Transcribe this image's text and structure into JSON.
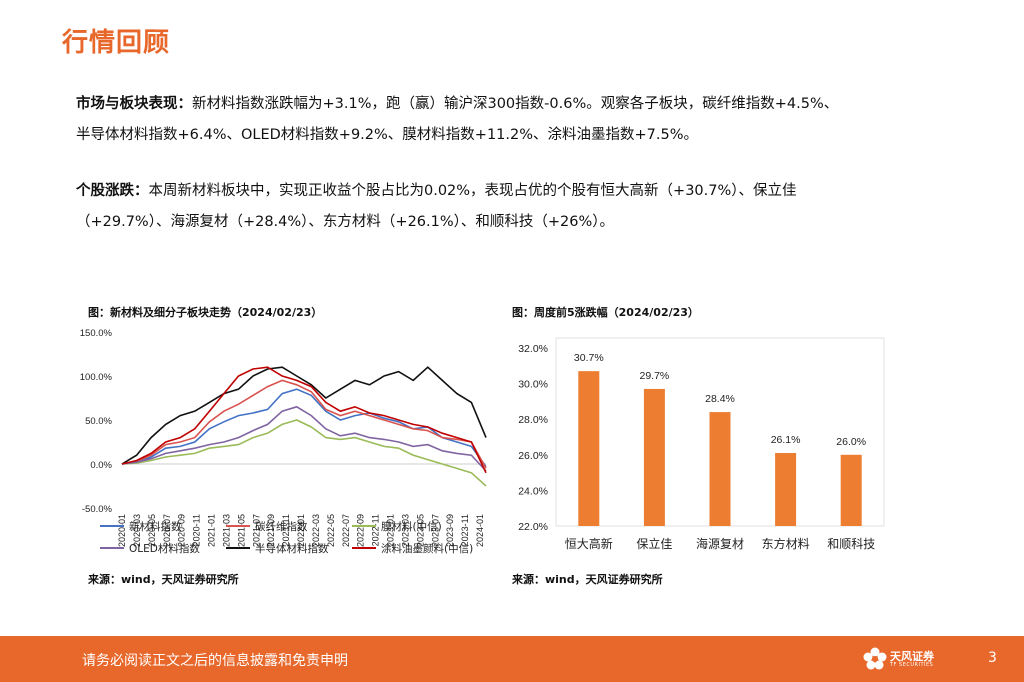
{
  "page_title": "行情回顾",
  "market": {
    "label": "市场与板块表现：",
    "text_l1": "新材料指数涨跌幅为+3.1%，跑（赢）输沪深300指数-0.6%。观察各子板块，碳纤维指数+4.5%、",
    "text_l2": "半导体材料指数+6.4%、OLED材料指数+9.2%、膜材料指数+11.2%、涂料油墨指数+7.5%。"
  },
  "stocks": {
    "label": "个股涨跌：",
    "text_l1": "本周新材料板块中，实现正收益个股占比为0.02%，表现占优的个股有恒大高新（+30.7%）、保立佳",
    "text_l2": "（+29.7%）、海源复材（+28.4%）、东方材料（+26.1%）、和顺科技（+26%）。"
  },
  "chart_data": [
    {
      "type": "line",
      "title": "图：新材料及细分子板块走势（2024/02/23）",
      "source": "来源：wind，天风证券研究所",
      "yticks": [
        "150.0%",
        "100.0%",
        "50.0%",
        "0.0%",
        "-50.0%"
      ],
      "ylim": [
        -50,
        150
      ],
      "xticks": [
        "2020-01",
        "2020-03",
        "2020-05",
        "2020-07",
        "2020-09",
        "2020-11",
        "2021-01",
        "2021-03",
        "2021-05",
        "2021-07",
        "2021-09",
        "2021-11",
        "2022-01",
        "2022-03",
        "2022-05",
        "2022-07",
        "2022-09",
        "2022-11",
        "2023-01",
        "2023-03",
        "2023-05",
        "2023-07",
        "2023-09",
        "2023-11",
        "2024-01"
      ],
      "legend_placement": "bottom",
      "series": [
        {
          "name": "新材料指数",
          "color": "#4472c4",
          "values": [
            0,
            2,
            8,
            18,
            20,
            25,
            40,
            48,
            55,
            58,
            62,
            80,
            85,
            78,
            60,
            50,
            55,
            58,
            52,
            48,
            40,
            42,
            30,
            25,
            20,
            -3
          ]
        },
        {
          "name": "碳纤维指数",
          "color": "#d9534f",
          "values": [
            0,
            3,
            10,
            22,
            25,
            30,
            48,
            60,
            68,
            78,
            88,
            95,
            90,
            82,
            62,
            55,
            60,
            55,
            50,
            45,
            40,
            38,
            30,
            28,
            25,
            -5
          ]
        },
        {
          "name": "膜材料(中信)",
          "color": "#9bbb59",
          "values": [
            0,
            1,
            4,
            8,
            10,
            12,
            18,
            20,
            22,
            30,
            35,
            45,
            50,
            42,
            30,
            28,
            30,
            25,
            20,
            18,
            10,
            5,
            0,
            -5,
            -10,
            -25
          ]
        },
        {
          "name": "OLED材料指数",
          "color": "#8064a2",
          "values": [
            0,
            2,
            6,
            12,
            15,
            18,
            22,
            25,
            30,
            38,
            45,
            60,
            65,
            55,
            40,
            32,
            35,
            30,
            28,
            25,
            20,
            22,
            15,
            12,
            10,
            -8
          ]
        },
        {
          "name": "半导体材料指数",
          "color": "#111111",
          "values": [
            0,
            10,
            30,
            45,
            55,
            60,
            70,
            80,
            85,
            100,
            108,
            110,
            100,
            90,
            75,
            85,
            95,
            90,
            100,
            105,
            95,
            110,
            95,
            80,
            70,
            30
          ]
        },
        {
          "name": "涂料油墨颜料(中信)",
          "color": "#c00000",
          "values": [
            0,
            4,
            12,
            25,
            30,
            40,
            60,
            80,
            100,
            108,
            110,
            100,
            95,
            88,
            70,
            60,
            65,
            58,
            55,
            50,
            45,
            42,
            35,
            30,
            25,
            -10
          ]
        }
      ]
    },
    {
      "type": "bar",
      "title": "图：周度前5涨跌幅（2024/02/23）",
      "source": "来源：wind，天风证券研究所",
      "categories": [
        "恒大高新",
        "保立佳",
        "海源复材",
        "东方材料",
        "和顺科技"
      ],
      "values": [
        30.7,
        29.7,
        28.4,
        26.1,
        26.0
      ],
      "labels": [
        "30.7%",
        "29.7%",
        "28.4%",
        "26.1%",
        "26.0%"
      ],
      "yticks": [
        "32.0%",
        "30.0%",
        "28.0%",
        "26.0%",
        "24.0%",
        "22.0%"
      ],
      "ylim": [
        22,
        32
      ],
      "color": "#ed7d31"
    }
  ],
  "footer": {
    "disclaimer": "请务必阅读正文之后的信息披露和免责申明",
    "logo_name": "天风证券",
    "logo_sub": "TF SECURITIES",
    "page_number": "3"
  },
  "colors": {
    "accent": "#e8672a",
    "bar": "#ed7d31"
  }
}
